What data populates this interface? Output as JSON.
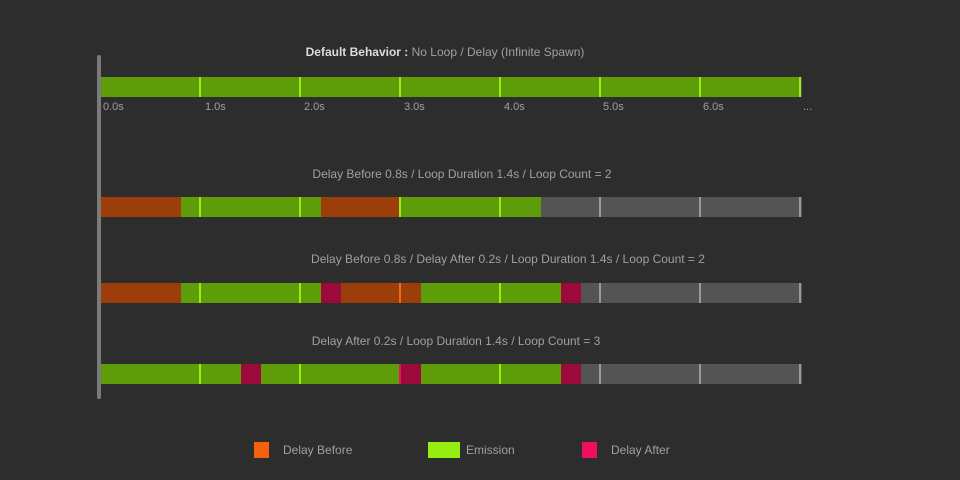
{
  "timeline": {
    "total_seconds": 7,
    "axis_labels": [
      "0.0s",
      "1.0s",
      "2.0s",
      "3.0s",
      "4.0s",
      "5.0s",
      "6.0s",
      "..."
    ]
  },
  "colors": {
    "emission": "#5f9c0a",
    "emission_tick": "#99ee11",
    "delay_before": "#9c3e0a",
    "delay_before_tick": "#f26b10",
    "delay_after": "#9c0a3c",
    "delay_after_tick": "#ee1060",
    "inactive": "#545454",
    "inactive_tick": "#9a9a9a"
  },
  "rows": [
    {
      "title_bold": "Default Behavior :",
      "title": "No Loop / Delay (Infinite Spawn)",
      "segments": [
        {
          "type": "emission",
          "duration": 7
        }
      ]
    },
    {
      "title_bold": "",
      "title": "Delay Before 0.8s / Loop Duration 1.4s / Loop Count = 2",
      "segments": [
        {
          "type": "delay_before",
          "duration": 0.8
        },
        {
          "type": "emission",
          "duration": 1.4
        },
        {
          "type": "delay_before",
          "duration": 0.8
        },
        {
          "type": "emission",
          "duration": 1.4
        }
      ]
    },
    {
      "title_bold": "",
      "title": "Delay Before 0.8s / Delay After 0.2s / Loop Duration 1.4s / Loop Count = 2",
      "segments": [
        {
          "type": "delay_before",
          "duration": 0.8
        },
        {
          "type": "emission",
          "duration": 1.4
        },
        {
          "type": "delay_after",
          "duration": 0.2
        },
        {
          "type": "delay_before",
          "duration": 0.8
        },
        {
          "type": "emission",
          "duration": 1.4
        },
        {
          "type": "delay_after",
          "duration": 0.2
        }
      ]
    },
    {
      "title_bold": "",
      "title": "Delay After 0.2s / Loop Duration 1.4s / Loop Count = 3",
      "segments": [
        {
          "type": "emission",
          "duration": 1.4
        },
        {
          "type": "delay_after",
          "duration": 0.2
        },
        {
          "type": "emission",
          "duration": 1.4
        },
        {
          "type": "delay_after",
          "duration": 0.2
        },
        {
          "type": "emission",
          "duration": 1.4
        },
        {
          "type": "delay_after",
          "duration": 0.2
        }
      ]
    }
  ],
  "legend": [
    {
      "label": "Delay Before",
      "color": "#f26010"
    },
    {
      "label": "Emission",
      "color": "#96ee10"
    },
    {
      "label": "Delay After",
      "color": "#ee1060"
    }
  ]
}
